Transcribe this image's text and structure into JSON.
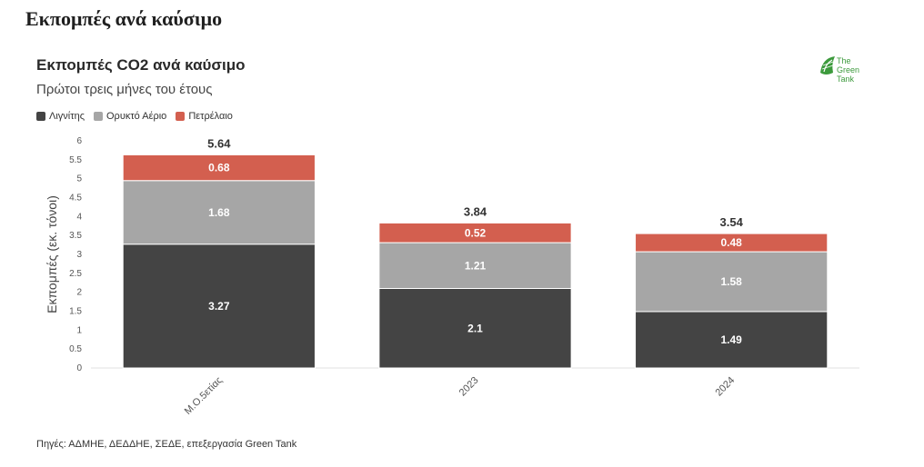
{
  "page": {
    "title": "Εκπομπές ανά καύσιμο"
  },
  "logo": {
    "text_line1": "The",
    "text_line2": "Green",
    "text_line3": "Tank"
  },
  "source": "Πηγές: ΑΔΜΗΕ, ΔΕΔΔΗΕ, ΣΕΔΕ, επεξεργασία Green Tank",
  "chart_data": {
    "type": "bar",
    "stacked": true,
    "title": "Εκπομπές CO2 ανά καύσιμο",
    "subtitle": "Πρώτοι τρεις μήνες του έτους",
    "xlabel": "",
    "ylabel": "Εκπομπές (εκ. τόνοι)",
    "ylim": [
      0,
      6
    ],
    "yticks": [
      "0",
      "0.5",
      "1",
      "1.5",
      "2",
      "2.5",
      "3",
      "3.5",
      "4",
      "4.5",
      "5",
      "5.5",
      "6"
    ],
    "categories": [
      "Μ.Ο.5ετίας",
      "2023",
      "2024"
    ],
    "totals": [
      "5.64",
      "3.84",
      "3.54"
    ],
    "legend_position": "top-left",
    "grid": false,
    "series": [
      {
        "name": "Λιγνίτης",
        "color": "#444444",
        "values": [
          3.27,
          2.1,
          1.49
        ],
        "labels": [
          "3.27",
          "2.1",
          "1.49"
        ]
      },
      {
        "name": "Ορυκτό Αέριο",
        "color": "#a6a6a6",
        "values": [
          1.68,
          1.21,
          1.58
        ],
        "labels": [
          "1.68",
          "1.21",
          "1.58"
        ]
      },
      {
        "name": "Πετρέλαιο",
        "color": "#d35f4f",
        "values": [
          0.68,
          0.52,
          0.48
        ],
        "labels": [
          "0.68",
          "0.52",
          "0.48"
        ]
      }
    ]
  }
}
